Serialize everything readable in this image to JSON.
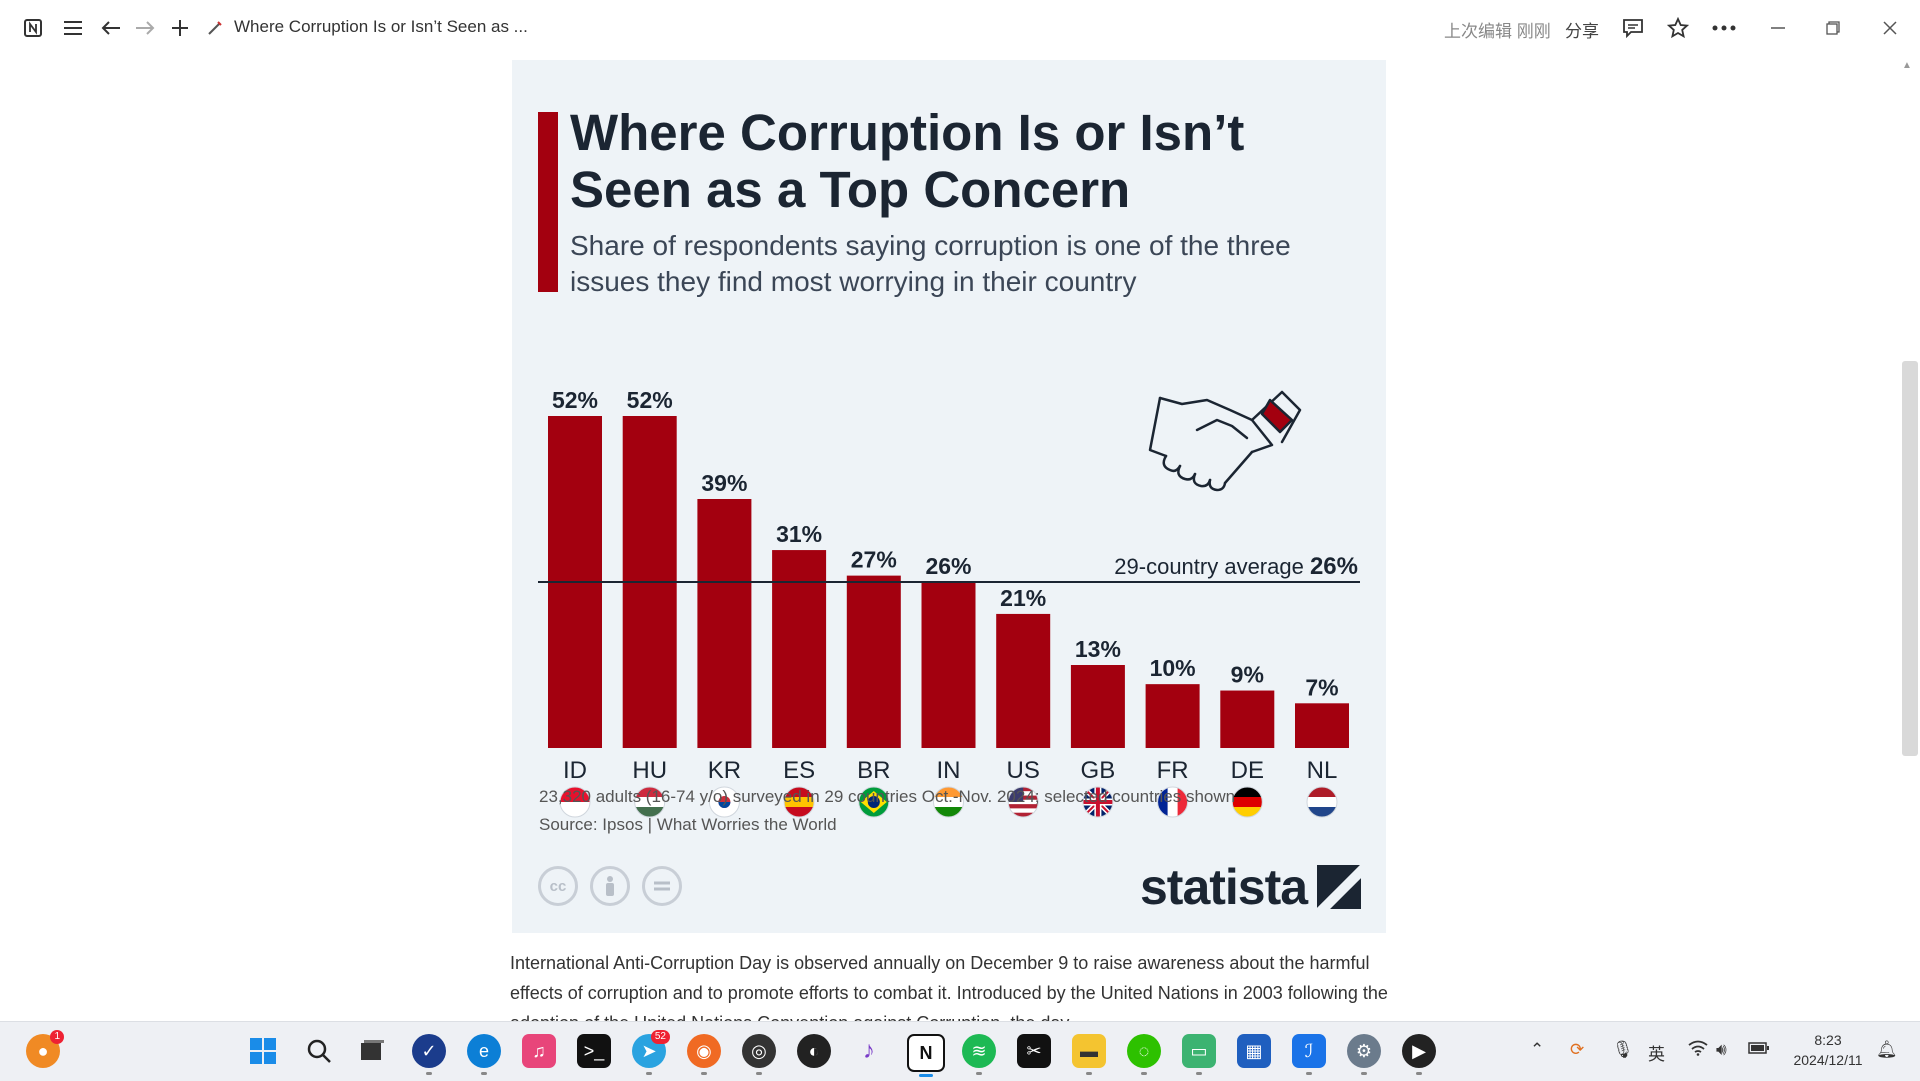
{
  "window": {
    "title": "Where Corruption Is or Isn’t Seen as ...",
    "last_edited": "上次编辑 刚刚",
    "share_label": "分享"
  },
  "infographic": {
    "title": "Where Corruption Is or Isn’t Seen as a Top Concern",
    "subtitle": "Share of respondents saying corruption is one of the three issues they find most worrying in their country",
    "note": "23,320 adults (16-74 y/o) surveyed in 29 countries Oct.-Nov. 2024; selected countries shown",
    "source": "Source: Ipsos | What Worries the World",
    "logo_text": "statista"
  },
  "chart_data": {
    "type": "bar",
    "title": "Where Corruption Is or Isn’t Seen as a Top Concern",
    "subtitle": "Share of respondents saying corruption is one of the three issues they find most worrying in their country",
    "categories": [
      "ID",
      "HU",
      "KR",
      "ES",
      "BR",
      "IN",
      "US",
      "GB",
      "FR",
      "DE",
      "NL"
    ],
    "values": [
      52,
      52,
      39,
      31,
      27,
      26,
      21,
      13,
      10,
      9,
      7
    ],
    "value_labels": [
      "52%",
      "52%",
      "39%",
      "31%",
      "27%",
      "26%",
      "21%",
      "13%",
      "10%",
      "9%",
      "7%"
    ],
    "ylim": [
      0,
      52
    ],
    "bar_color": "#a3000f",
    "reference_line": {
      "label": "29-country average",
      "value": 26,
      "value_label": "26%"
    },
    "grid": false,
    "legend": "none"
  },
  "article": {
    "text": "International Anti-Corruption Day is observed annually on December 9 to raise awareness about the harmful effects of corruption and to promote efforts to combat it. Introduced by the United Nations in 2003 following the adoption of the United Nations Convention against Corruption, the day"
  },
  "taskbar": {
    "clock_time": "8:23",
    "clock_date": "2024/12/11",
    "ime": "英",
    "notification_count": "1",
    "telegram_count": "52"
  }
}
